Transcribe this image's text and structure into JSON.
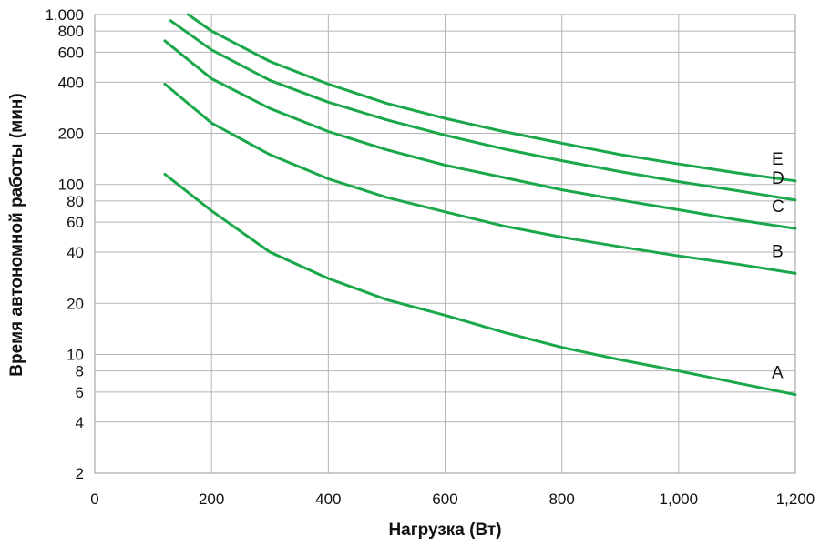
{
  "chart_data": {
    "type": "line",
    "title": "",
    "xlabel": "Нагрузка (Вт)",
    "ylabel": "Время автономной работы (мин)",
    "xlim": [
      0,
      1200
    ],
    "ylim": [
      2,
      1000
    ],
    "yscale": "log",
    "grid": true,
    "x_ticks": [
      {
        "value": 0,
        "label": "0"
      },
      {
        "value": 200,
        "label": "200"
      },
      {
        "value": 400,
        "label": "400"
      },
      {
        "value": 600,
        "label": "600"
      },
      {
        "value": 800,
        "label": "800"
      },
      {
        "value": 1000,
        "label": "1,000"
      },
      {
        "value": 1200,
        "label": "1,200"
      }
    ],
    "y_ticks": [
      {
        "value": 2,
        "label": "2"
      },
      {
        "value": 4,
        "label": "4"
      },
      {
        "value": 6,
        "label": "6"
      },
      {
        "value": 8,
        "label": "8"
      },
      {
        "value": 10,
        "label": "10"
      },
      {
        "value": 20,
        "label": "20"
      },
      {
        "value": 40,
        "label": "40"
      },
      {
        "value": 60,
        "label": "60"
      },
      {
        "value": 80,
        "label": "80"
      },
      {
        "value": 100,
        "label": "100"
      },
      {
        "value": 200,
        "label": "200"
      },
      {
        "value": 400,
        "label": "400"
      },
      {
        "value": 600,
        "label": "600"
      },
      {
        "value": 800,
        "label": "800"
      },
      {
        "value": 1000,
        "label": "1,000"
      }
    ],
    "series_color": "#1aa84a",
    "series": [
      {
        "name": "A",
        "x": [
          120,
          200,
          300,
          400,
          500,
          600,
          700,
          800,
          900,
          1000,
          1100,
          1200
        ],
        "values": [
          115,
          70,
          40,
          28,
          21,
          17,
          13.5,
          11,
          9.3,
          8,
          6.8,
          5.8
        ]
      },
      {
        "name": "B",
        "x": [
          120,
          200,
          300,
          400,
          500,
          600,
          700,
          800,
          900,
          1000,
          1100,
          1200
        ],
        "values": [
          390,
          230,
          150,
          108,
          84,
          69,
          57,
          49,
          43,
          38,
          34,
          30
        ]
      },
      {
        "name": "C",
        "x": [
          120,
          200,
          300,
          400,
          500,
          600,
          700,
          800,
          900,
          1000,
          1100,
          1200
        ],
        "values": [
          700,
          420,
          280,
          205,
          160,
          130,
          110,
          93,
          81,
          71,
          62,
          55
        ]
      },
      {
        "name": "D",
        "x": [
          130,
          200,
          300,
          400,
          500,
          600,
          700,
          800,
          900,
          1000,
          1100,
          1200
        ],
        "values": [
          920,
          620,
          410,
          305,
          240,
          195,
          162,
          138,
          119,
          104,
          92,
          81
        ]
      },
      {
        "name": "E",
        "x": [
          160,
          200,
          300,
          400,
          500,
          600,
          700,
          800,
          900,
          1000,
          1100,
          1200
        ],
        "values": [
          1000,
          800,
          530,
          390,
          300,
          245,
          205,
          175,
          150,
          132,
          117,
          105
        ]
      }
    ]
  }
}
